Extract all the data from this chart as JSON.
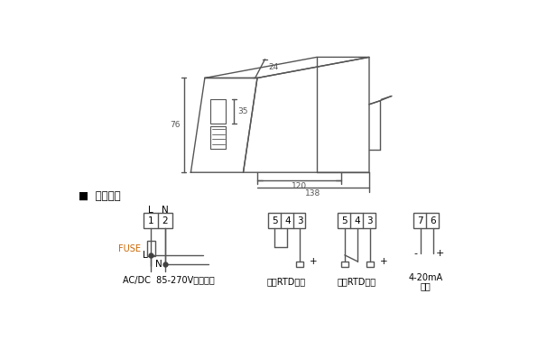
{
  "bg_color": "#ffffff",
  "line_color": "#555555",
  "dim_color": "#555555",
  "section_label": "■  接线方式",
  "box_label_power": "AC/DC  85-270V辅助电源",
  "box_label_2wire": "二线RTD输入",
  "box_label_3wire": "三线RTD输入",
  "box_label_output_1": "4-20mA",
  "box_label_output_2": "输出",
  "fuse_label": "FUSE",
  "dim_24": "24",
  "dim_35": "35",
  "dim_76": "76",
  "dim_120": "120",
  "dim_138": "138"
}
